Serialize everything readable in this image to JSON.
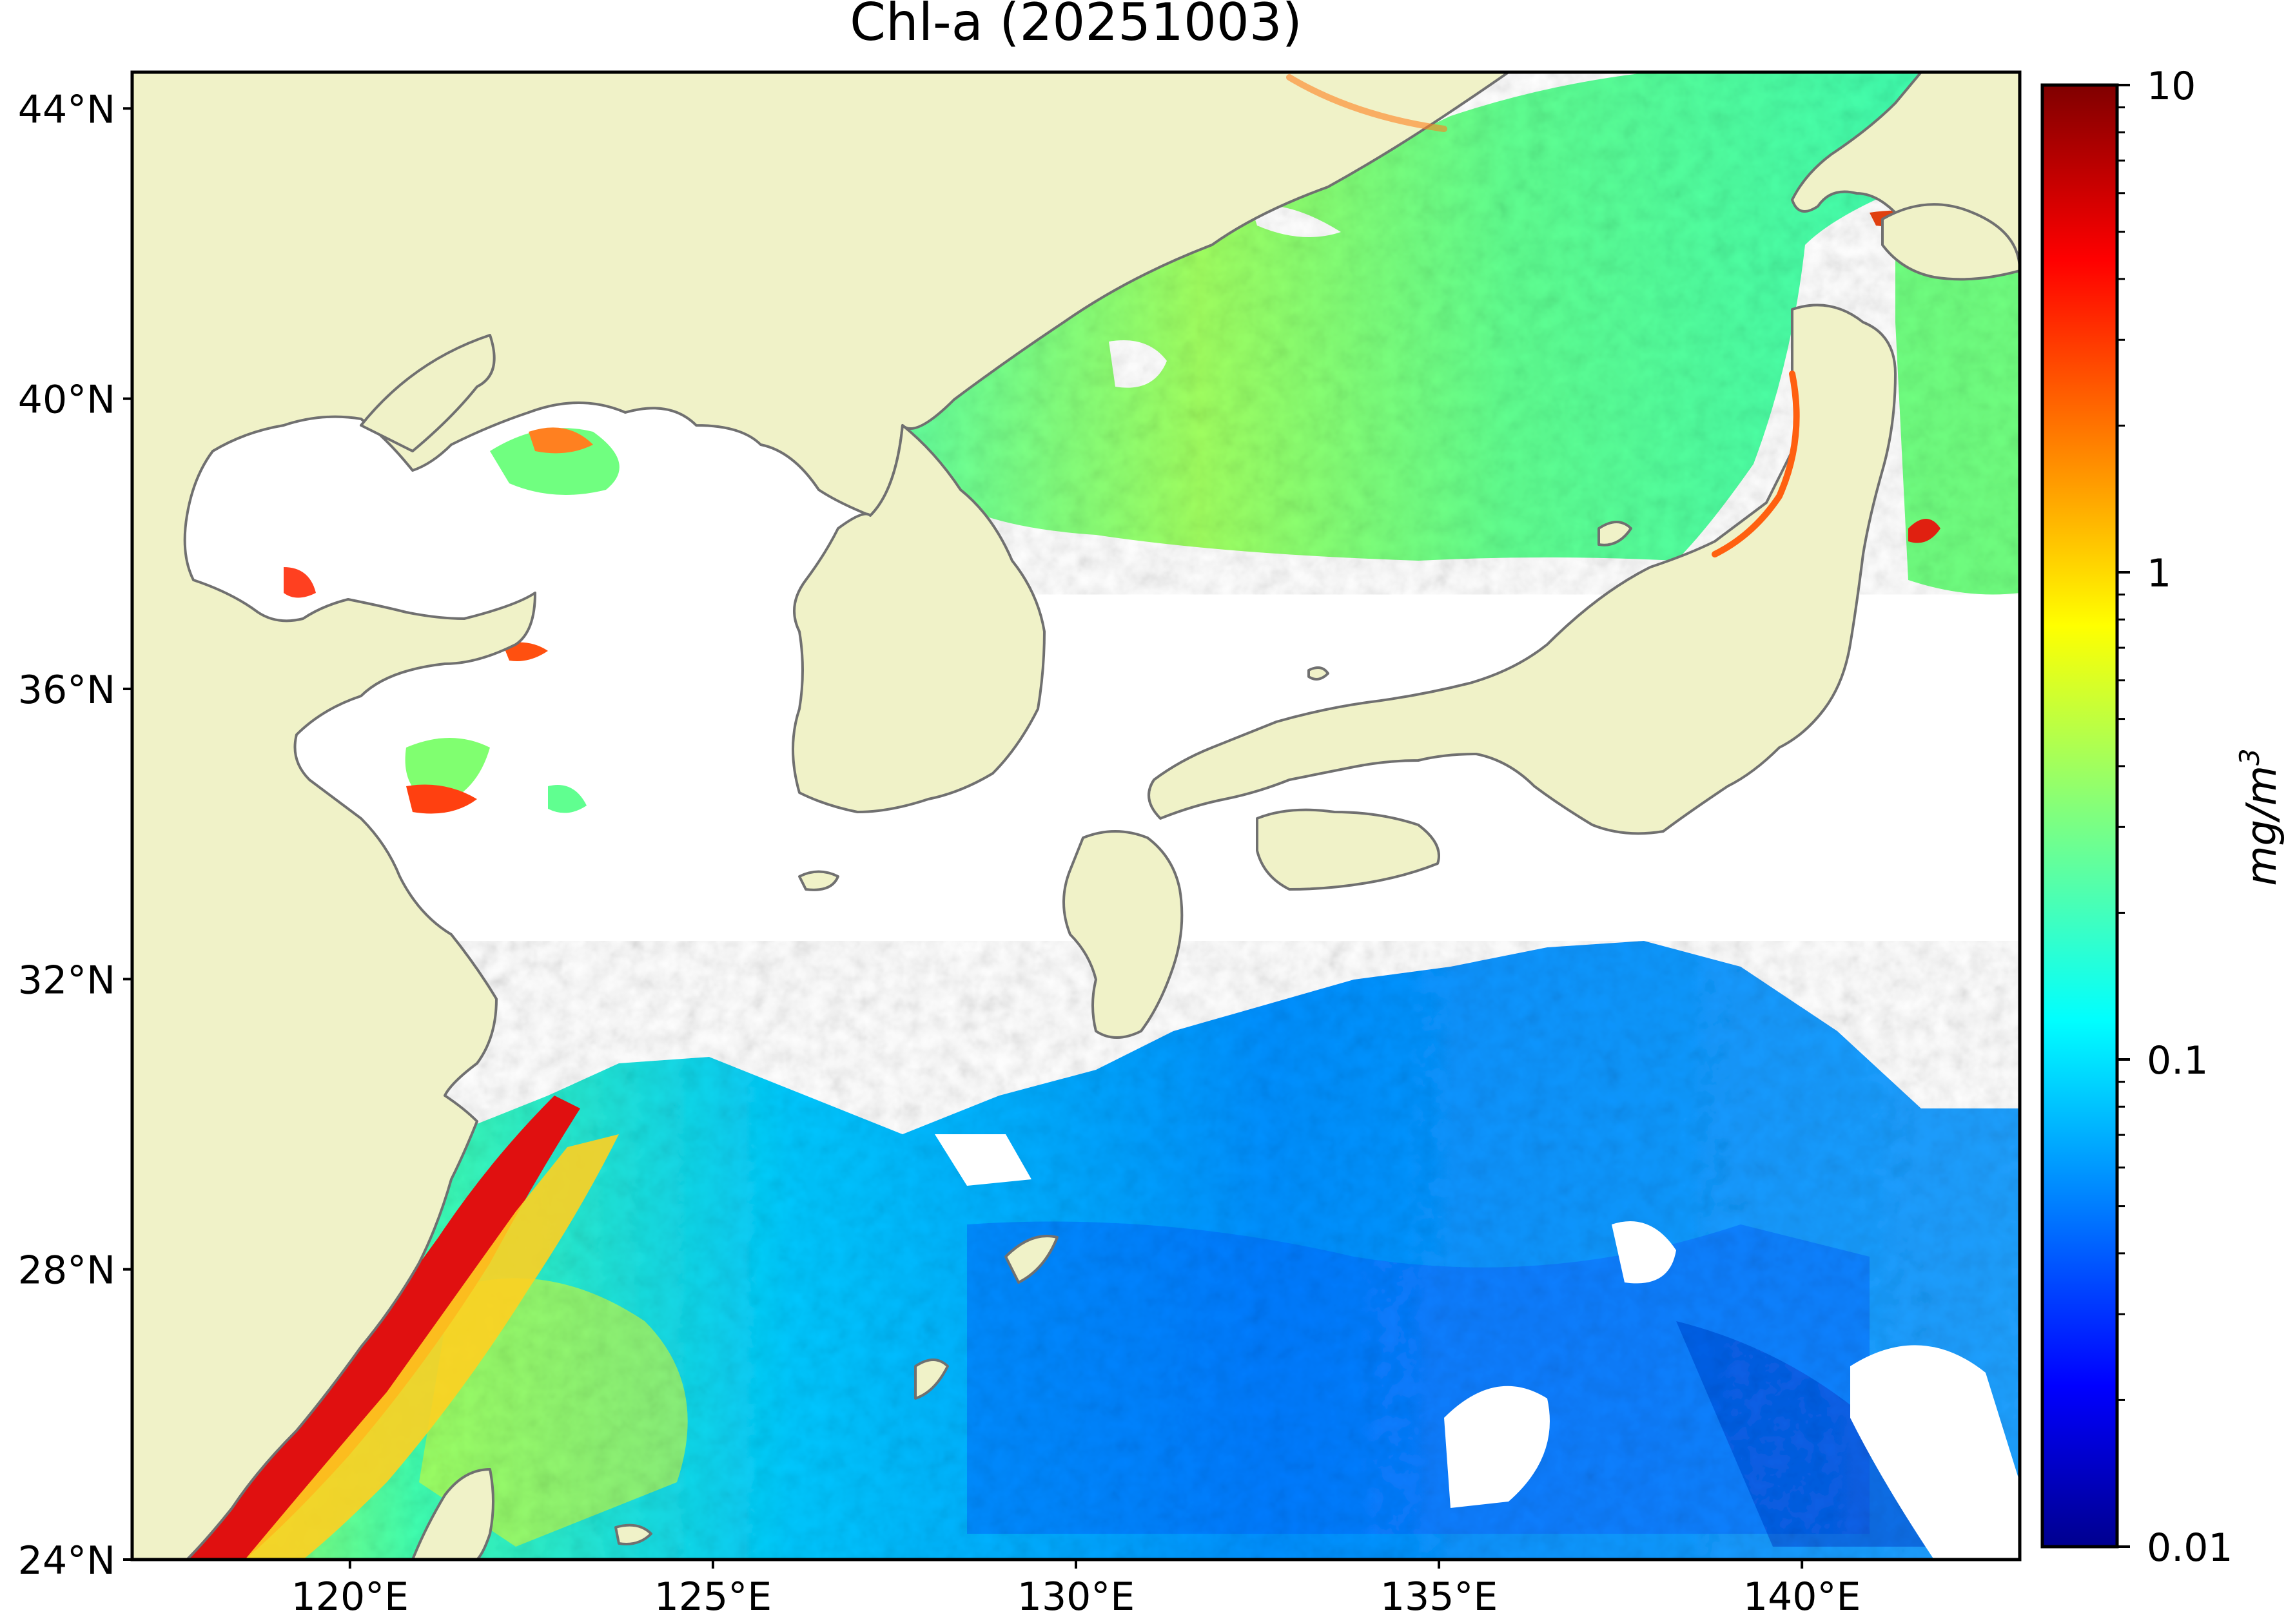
{
  "title": "Chl-a (20251003)",
  "map": {
    "lon_range": [
      117,
      143
    ],
    "lat_range": [
      24,
      44.5
    ],
    "lat_ticks": [
      {
        "value": 44,
        "label": "44°N"
      },
      {
        "value": 40,
        "label": "40°N"
      },
      {
        "value": 36,
        "label": "36°N"
      },
      {
        "value": 32,
        "label": "32°N"
      },
      {
        "value": 28,
        "label": "28°N"
      },
      {
        "value": 24,
        "label": "24°N"
      }
    ],
    "lon_ticks": [
      {
        "value": 120,
        "label": "120°E"
      },
      {
        "value": 125,
        "label": "125°E"
      },
      {
        "value": 130,
        "label": "130°E"
      },
      {
        "value": 135,
        "label": "135°E"
      },
      {
        "value": 140,
        "label": "140°E"
      }
    ],
    "colors": {
      "land": "#f0f2c8",
      "no_data": "#ffffff",
      "coastline": "#707070"
    }
  },
  "colorbar": {
    "label": "mg/m",
    "label_superscript": "3",
    "scale": "log",
    "range": [
      0.01,
      10
    ],
    "colormap": "jet",
    "ticks": [
      {
        "value": 10,
        "label": "10"
      },
      {
        "value": 1,
        "label": "1"
      },
      {
        "value": 0.1,
        "label": "0.1"
      },
      {
        "value": 0.01,
        "label": "0.01"
      }
    ]
  }
}
